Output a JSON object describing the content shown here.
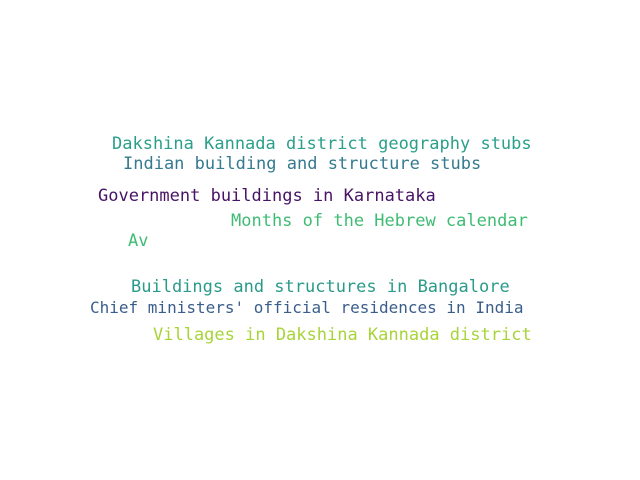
{
  "word_cloud": {
    "words": [
      {
        "text": "Dakshina Kannada district geography stubs",
        "color": "#2aa08a"
      },
      {
        "text": "Indian building and structure stubs",
        "color": "#357a8e"
      },
      {
        "text": "Government buildings in Karnataka",
        "color": "#471365"
      },
      {
        "text": "Months of the Hebrew calendar",
        "color": "#3fbc74"
      },
      {
        "text": "Av",
        "color": "#3fbc74"
      },
      {
        "text": "Buildings and structures in Bangalore",
        "color": "#2a9b8a"
      },
      {
        "text": "Chief ministers' official residences in India",
        "color": "#3a5e8c"
      },
      {
        "text": "Villages in Dakshina Kannada district",
        "color": "#a8d43a"
      }
    ]
  }
}
